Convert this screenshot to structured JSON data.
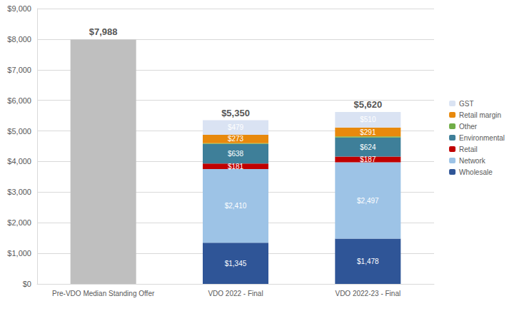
{
  "chart_data": {
    "type": "bar",
    "stacked": true,
    "data_labels": true,
    "grid": true,
    "legend": "right",
    "categories": [
      "Pre-VDO Median Standing Offer",
      "VDO 2022 - Final",
      "VDO 2022-23 - Final"
    ],
    "ylim": [
      0,
      9000
    ],
    "yticks": [
      {
        "value": 0,
        "label": "$0"
      },
      {
        "value": 1000,
        "label": "$1,000"
      },
      {
        "value": 2000,
        "label": "$2,000"
      },
      {
        "value": 3000,
        "label": "$3,000"
      },
      {
        "value": 4000,
        "label": "$4,000"
      },
      {
        "value": 5000,
        "label": "$5,000"
      },
      {
        "value": 6000,
        "label": "$6,000"
      },
      {
        "value": 7000,
        "label": "$7,000"
      },
      {
        "value": 8000,
        "label": "$8,000"
      },
      {
        "value": 9000,
        "label": "$9,000"
      }
    ],
    "totals": [
      7988,
      5350,
      5620
    ],
    "total_labels": [
      "$7,988",
      "$5,350",
      "$5,620"
    ],
    "series": [
      {
        "color": "#bfbfbf",
        "values": [
          7988,
          null,
          null
        ]
      },
      {
        "name": "Wholesale",
        "color": "#2f5597",
        "values": [
          null,
          1345,
          1478
        ],
        "value_labels": [
          null,
          "$1,345",
          "$1,478"
        ]
      },
      {
        "name": "Network",
        "color": "#9dc3e6",
        "values": [
          null,
          2410,
          2497
        ],
        "value_labels": [
          null,
          "$2,410",
          "$2,497"
        ]
      },
      {
        "name": "Retail",
        "color": "#c00000",
        "values": [
          null,
          181,
          187
        ],
        "value_labels": [
          null,
          "$181",
          "$187"
        ]
      },
      {
        "name": "Environmental",
        "color": "#3e7f99",
        "values": [
          null,
          638,
          624
        ],
        "value_labels": [
          null,
          "$638",
          "$624"
        ]
      },
      {
        "name": "Other",
        "color": "#70ad47",
        "values": [
          null,
          24,
          33
        ],
        "value_labels": [
          null,
          null,
          null
        ]
      },
      {
        "name": "Retail margin",
        "color": "#e8890c",
        "values": [
          null,
          273,
          291
        ],
        "value_labels": [
          null,
          "$273",
          "$291"
        ]
      },
      {
        "name": "GST",
        "color": "#dae3f3",
        "values": [
          null,
          479,
          510
        ],
        "value_labels": [
          null,
          "$479",
          "$510"
        ]
      }
    ]
  }
}
